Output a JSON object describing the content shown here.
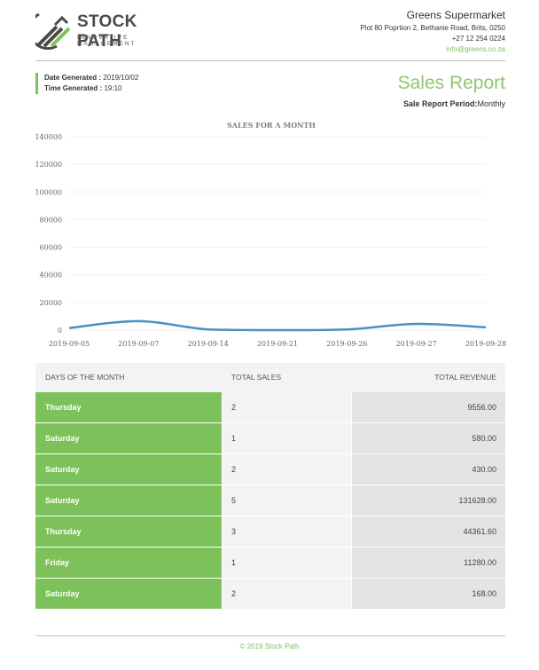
{
  "brand": {
    "name": "STOCK PATH",
    "tagline": "INNOVATIVE MANAGEMENT",
    "accent": "#7dc15a"
  },
  "company": {
    "name": "Greens Supermarket",
    "address": "Plot 80 Poprtion 2, Bethanie Road, Brits, 0250",
    "phone": "+27 12 254 0224",
    "email": "info@greens.co.za"
  },
  "meta": {
    "date_label": "Date Generated :",
    "date_value": " 2019/10/02",
    "time_label": "Time Generated :",
    "time_value": " 19:10"
  },
  "report": {
    "title": "Sales Report",
    "period_label": "Sale Report Period:",
    "period_value": "Monthly"
  },
  "chart_data": {
    "type": "line",
    "title": "SALES FOR A MONTH",
    "categories": [
      "2019-09-05",
      "2019-09-07",
      "2019-09-14",
      "2019-09-21",
      "2019-09-26",
      "2019-09-27",
      "2019-09-28"
    ],
    "series": [
      {
        "values": [
          1500,
          6500,
          500,
          0,
          500,
          4500,
          2000
        ]
      }
    ],
    "yticks": [
      "140000",
      "120000",
      "100000",
      "80000",
      "60000",
      "40000",
      "20000",
      "0"
    ],
    "ylim": [
      0,
      140000
    ],
    "grid": true,
    "color": "#4a90c4"
  },
  "table": {
    "headers": [
      "DAYS OF THE MONTH",
      "TOTAL SALES",
      "TOTAL REVENUE"
    ],
    "rows": [
      {
        "day": "Thursday",
        "sales": "2",
        "revenue": "9556.00"
      },
      {
        "day": "Saturday",
        "sales": "1",
        "revenue": "580.00"
      },
      {
        "day": "Saturday",
        "sales": "2",
        "revenue": "430.00"
      },
      {
        "day": "Saturday",
        "sales": "5",
        "revenue": "131628.00"
      },
      {
        "day": "Thursday",
        "sales": "3",
        "revenue": "44361.60"
      },
      {
        "day": "Friday",
        "sales": "1",
        "revenue": "11280.00"
      },
      {
        "day": "Saturday",
        "sales": "2",
        "revenue": "168.00"
      }
    ]
  },
  "footer": {
    "text": "© 2019 Stock Path"
  }
}
